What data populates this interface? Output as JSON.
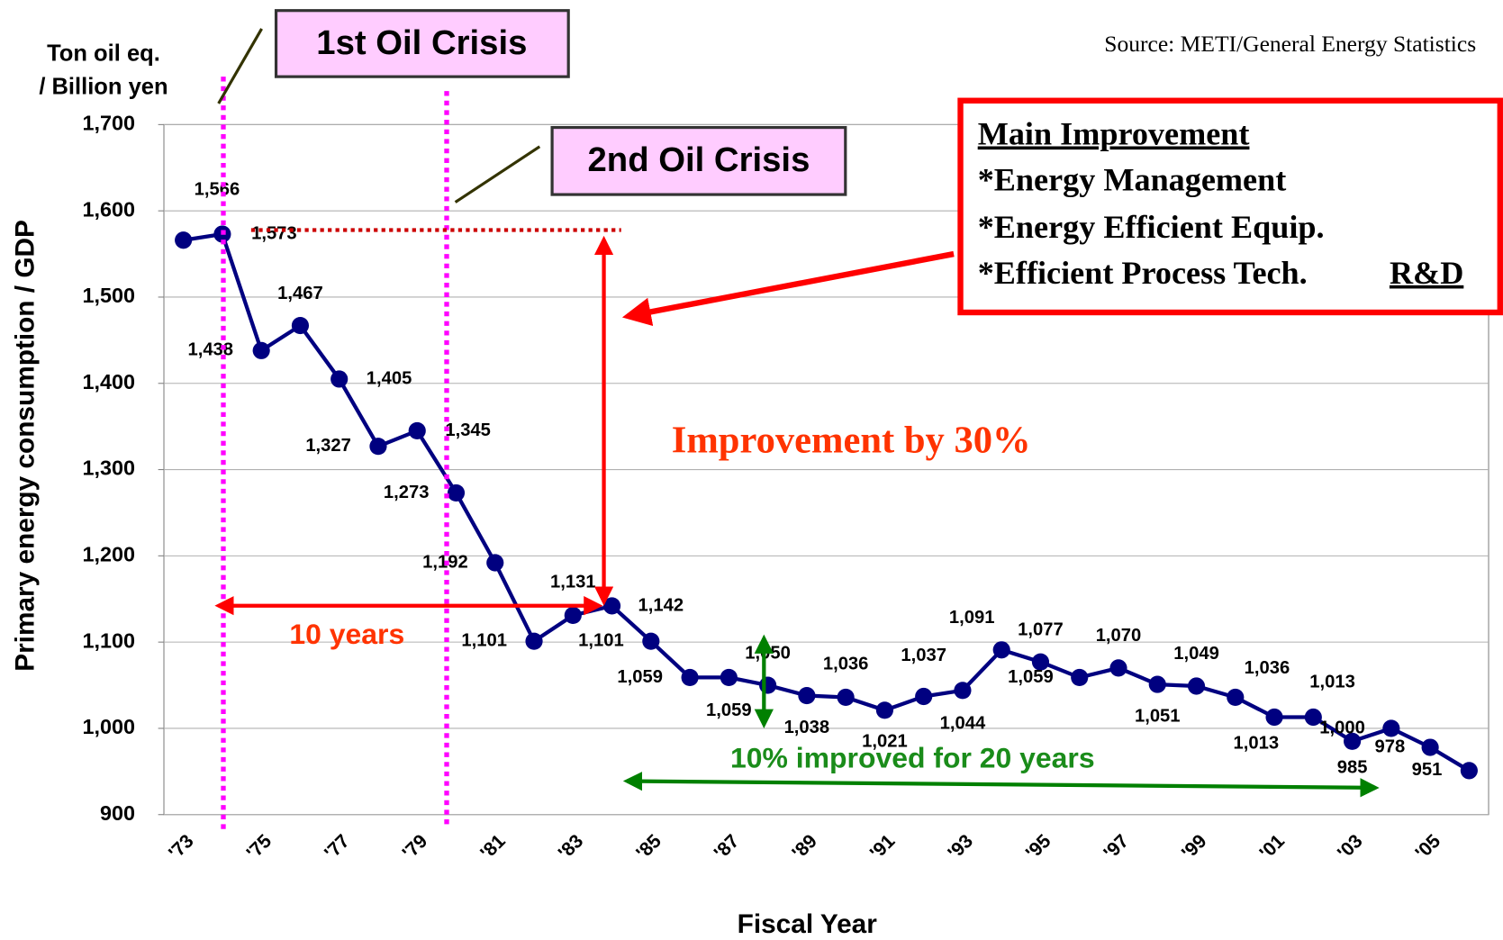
{
  "chart_data": {
    "type": "line",
    "unit_label": [
      "Ton oil eq.",
      "/ Billion yen"
    ],
    "y_label": "Primary energy consumption / GDP",
    "x_label": "Fiscal Year",
    "source": "Source: METI/General Energy Statistics",
    "categories": [
      "'73",
      null,
      "'75",
      null,
      "'77",
      null,
      "'79",
      null,
      "'81",
      null,
      "'83",
      null,
      "'85",
      null,
      "'87",
      null,
      "'89",
      null,
      "'91",
      null,
      "'93",
      null,
      "'95",
      null,
      "'97",
      null,
      "'99",
      null,
      "'01",
      null,
      "'03",
      null,
      "'05",
      null
    ],
    "series": [
      {
        "name": "Primary energy consumption / GDP",
        "color": "#000080",
        "values": [
          1566,
          1573,
          1438,
          1467,
          1405,
          1327,
          1345,
          1273,
          1192,
          1101,
          1131,
          1142,
          1101,
          1059,
          1059,
          1050,
          1038,
          1036,
          1021,
          1037,
          1044,
          1091,
          1077,
          1059,
          1070,
          1051,
          1049,
          1036,
          1013,
          1013,
          985,
          1000,
          978,
          951
        ],
        "value_labels": [
          "1,566",
          "1,573",
          "1,438",
          "1,467",
          "1,405",
          "1,327",
          "1,345",
          "1,273",
          "1,192",
          "1,101",
          "1,131",
          "1,142",
          "1,101",
          "1,059",
          "1,059",
          "1,050",
          "1,038",
          "1,036",
          "1,021",
          "1,037",
          "1,044",
          "1,091",
          "1,077",
          "1,059",
          "1,070",
          "1,051",
          "1,049",
          "1,036",
          "1,013",
          "1,013",
          "985",
          "1,000",
          "978",
          "951"
        ]
      }
    ],
    "ylim": [
      900,
      1700
    ],
    "yticks": [
      900,
      {
        "value": 1000,
        "label": "1,000"
      },
      {
        "value": 1100,
        "label": "1,100"
      },
      {
        "value": 1200,
        "label": "1,200"
      },
      {
        "value": 1300,
        "label": "1,300"
      },
      {
        "value": 1400,
        "label": "1,400"
      },
      {
        "value": 1500,
        "label": "1,500"
      },
      {
        "value": 1600,
        "label": "1,600"
      },
      {
        "value": 1700,
        "label": "1,700"
      }
    ],
    "grid": true,
    "annotations": {
      "first_crisis": "1st Oil Crisis",
      "second_crisis": "2nd Oil Crisis",
      "improvement_title": "Main Improvement",
      "improvement_items": [
        "*Energy Management",
        "*Energy Efficient Equip.",
        "*Efficient Process Tech."
      ],
      "improvement_rd": "R&D",
      "improvement_30": "Improvement by 30%",
      "ten_years": "10 years",
      "ten_percent": "10% improved for 20 years"
    }
  }
}
